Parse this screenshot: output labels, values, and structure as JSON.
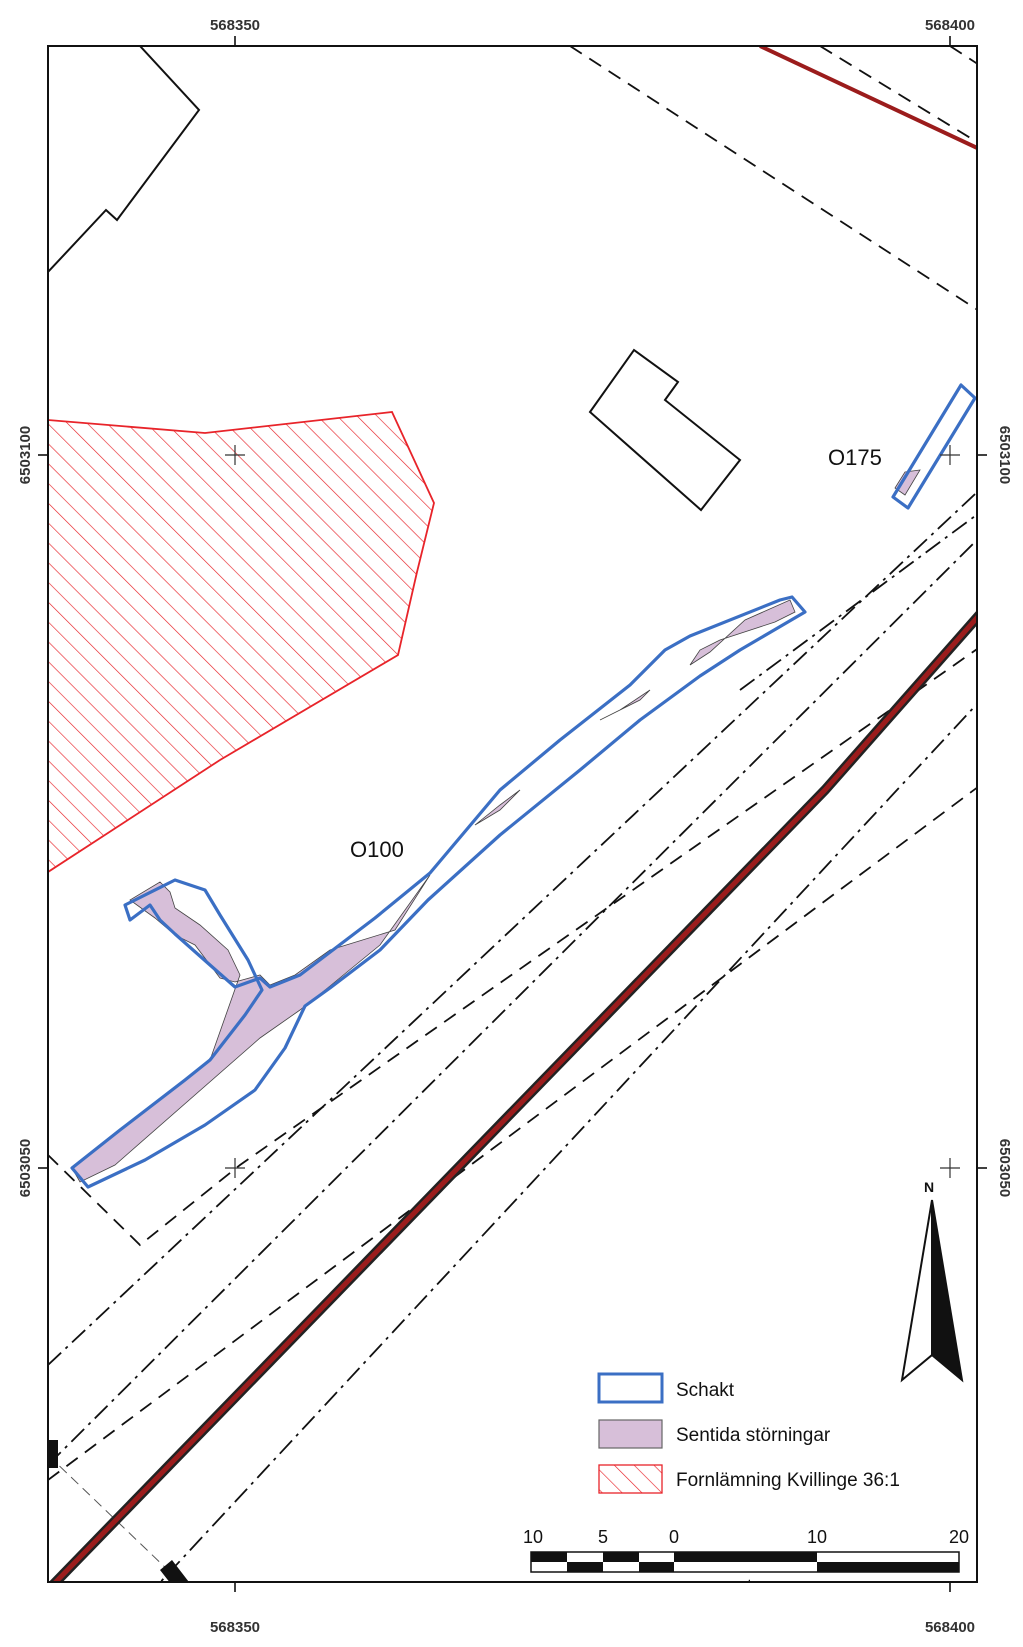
{
  "grid": {
    "x_top": [
      "568350",
      "568400"
    ],
    "x_bottom": [
      "568350",
      "568400"
    ],
    "y_left": [
      "6503100",
      "6503050"
    ],
    "y_right": [
      "6503100",
      "6503050"
    ]
  },
  "labels": {
    "o100": "O100",
    "o175": "O175"
  },
  "legend": {
    "items": [
      {
        "label": "Schakt",
        "stroke": "#3b6fc4",
        "fill": "#ffffff"
      },
      {
        "label": "Sentida störningar",
        "stroke": "#666666",
        "fill": "#d7bfd9"
      },
      {
        "label": "Fornlämning Kvillinge 36:1",
        "stroke": "#e8242a",
        "fill": "hatch"
      }
    ]
  },
  "scale": {
    "ticks": [
      "10",
      "5",
      "0",
      "10",
      "20"
    ],
    "unit": "meter"
  },
  "north": {
    "label": "N"
  },
  "colors": {
    "schakt": "#3b6fc4",
    "sentida": "#d7bfd9",
    "fornlamning": "#e8242a",
    "road": "#9b1c1c"
  }
}
